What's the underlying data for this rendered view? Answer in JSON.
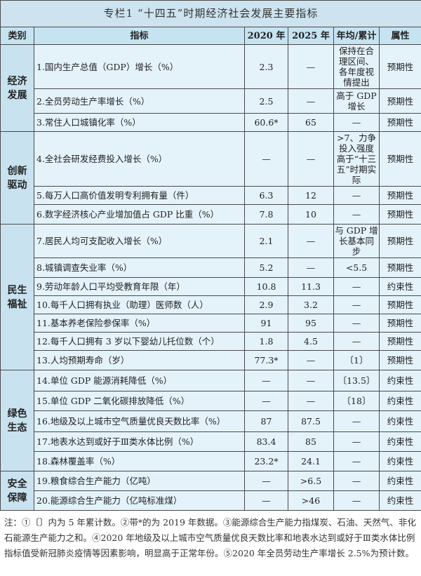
{
  "title": "专栏1 “十四五”时期经济社会发展主要指标",
  "headers": [
    "类别",
    "指标",
    "2020 年",
    "2025 年",
    "年均/累计",
    "属性"
  ],
  "categories": [
    {
      "name": "经济\n发展",
      "rows": 3
    },
    {
      "name": "创新\n驱动",
      "rows": 3
    },
    {
      "name": "民生\n福祉",
      "rows": 7
    },
    {
      "name": "绿色\n生态",
      "rows": 5
    },
    {
      "name": "安全\n保障",
      "rows": 2
    }
  ],
  "rows": [
    {
      "indicator": "1.国内生产总值（GDP）增长（%）",
      "y2020": "2.3",
      "y2025": "—",
      "avg": "保持在合理区间、各年度视情提出",
      "attr": "预期性"
    },
    {
      "indicator": "2.全员劳动生产率增长（%）",
      "y2020": "2.5",
      "y2025": "—",
      "avg": "高于 GDP 增长",
      "attr": "预期性"
    },
    {
      "indicator": "3.常住人口城镇化率（%）",
      "y2020": "60.6*",
      "y2025": "65",
      "avg": "—",
      "attr": "预期性"
    },
    {
      "indicator": "4.全社会研发经费投入增长（%）",
      "y2020": "—",
      "y2025": "—",
      "avg": ">7、力争投入强度高于“十三五”时期实际",
      "attr": "预期性"
    },
    {
      "indicator": "5.每万人口高价值发明专利拥有量（件）",
      "y2020": "6.3",
      "y2025": "12",
      "avg": "—",
      "attr": "预期性"
    },
    {
      "indicator": "6.数字经济核心产业增加值占 GDP 比重（%）",
      "y2020": "7.8",
      "y2025": "10",
      "avg": "—",
      "attr": "预期性"
    },
    {
      "indicator": "7.居民人均可支配收入增长（%）",
      "y2020": "2.1",
      "y2025": "—",
      "avg": "与 GDP 增长基本同步",
      "attr": "预期性"
    },
    {
      "indicator": "8.城镇调查失业率（%）",
      "y2020": "5.2",
      "y2025": "—",
      "avg": "<5.5",
      "attr": "预期性"
    },
    {
      "indicator": "9.劳动年龄人口平均受教育年限（年）",
      "y2020": "10.8",
      "y2025": "11.3",
      "avg": "—",
      "attr": "约束性"
    },
    {
      "indicator": "10.每千人口拥有执业（助理）医师数（人）",
      "y2020": "2.9",
      "y2025": "3.2",
      "avg": "—",
      "attr": "预期性"
    },
    {
      "indicator": "11.基本养老保险参保率（%）",
      "y2020": "91",
      "y2025": "95",
      "avg": "—",
      "attr": "预期性"
    },
    {
      "indicator": "12.每千人口拥有 3 岁以下婴幼儿托位数（个）",
      "y2020": "1.8",
      "y2025": "4.5",
      "avg": "—",
      "attr": "预期性"
    },
    {
      "indicator": "13.人均预期寿命（岁）",
      "y2020": "77.3*",
      "y2025": "—",
      "avg": "〔1〕",
      "attr": "预期性"
    },
    {
      "indicator": "14.单位 GDP 能源消耗降低（%）",
      "y2020": "—",
      "y2025": "—",
      "avg": "〔13.5〕",
      "attr": "约束性"
    },
    {
      "indicator": "15.单位 GDP 二氧化碳排放降低（%）",
      "y2020": "—",
      "y2025": "—",
      "avg": "〔18〕",
      "attr": "约束性"
    },
    {
      "indicator": "16.地级及以上城市空气质量优良天数比率（%）",
      "y2020": "87",
      "y2025": "87.5",
      "avg": "—",
      "attr": "约束性"
    },
    {
      "indicator": "17.地表水达到或好于Ⅲ类水体比例（%）",
      "y2020": "83.4",
      "y2025": "85",
      "avg": "—",
      "attr": "约束性"
    },
    {
      "indicator": "18.森林覆盖率（%）",
      "y2020": "23.2*",
      "y2025": "24.1",
      "avg": "—",
      "attr": "约束性"
    },
    {
      "indicator": "19.粮食综合生产能力（亿吨）",
      "y2020": "—",
      "y2025": ">6.5",
      "avg": "—",
      "attr": "约束性"
    },
    {
      "indicator": "20.能源综合生产能力（亿吨标准煤）",
      "y2020": "—",
      "y2025": ">46",
      "avg": "—",
      "attr": "约束性"
    }
  ],
  "notes": "注：①〔〕内为 5 年累计数。②带*的为 2019 年数据。③能源综合生产能力指煤炭、石油、天然气、非化石能源生产能力之和。④2020 年地级及以上城市空气质量优良天数比率和地表水达到或好于Ⅲ类水体比例指标值受新冠肺炎疫情等因素影响，明显高于正常年份。⑤2020 年全员劳动生产率增长 2.5%为预计数。"
}
